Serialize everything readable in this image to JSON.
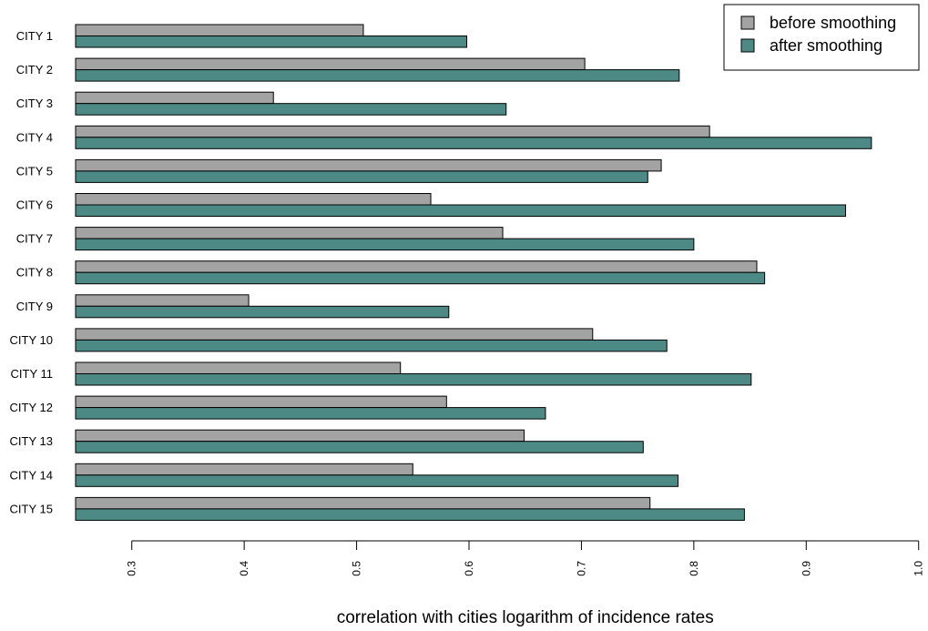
{
  "chart_data": {
    "type": "bar",
    "orientation": "horizontal",
    "categories": [
      "CITY 1",
      "CITY 2",
      "CITY 3",
      "CITY 4",
      "CITY 5",
      "CITY 6",
      "CITY 7",
      "CITY 8",
      "CITY 9",
      "CITY 10",
      "CITY 11",
      "CITY 12",
      "CITY 13",
      "CITY 14",
      "CITY 15"
    ],
    "series": [
      {
        "name": "before smoothing",
        "color": "#a3a3a3",
        "values": [
          0.506,
          0.703,
          0.426,
          0.814,
          0.771,
          0.566,
          0.63,
          0.856,
          0.404,
          0.71,
          0.539,
          0.58,
          0.649,
          0.55,
          0.761
        ]
      },
      {
        "name": "after smoothing",
        "color": "#4d8a86",
        "values": [
          0.598,
          0.787,
          0.633,
          0.958,
          0.759,
          0.935,
          0.8,
          0.863,
          0.582,
          0.776,
          0.851,
          0.668,
          0.755,
          0.786,
          0.845
        ]
      }
    ],
    "title": "",
    "xlabel": "correlation with cities logarithm of incidence rates",
    "ylabel": "",
    "xlim": [
      0.25,
      1.0
    ],
    "ticks": [
      "0.3",
      "0.4",
      "0.5",
      "0.6",
      "0.7",
      "0.8",
      "0.9",
      "1.0"
    ],
    "grid": false,
    "legend_position": "top-right"
  }
}
